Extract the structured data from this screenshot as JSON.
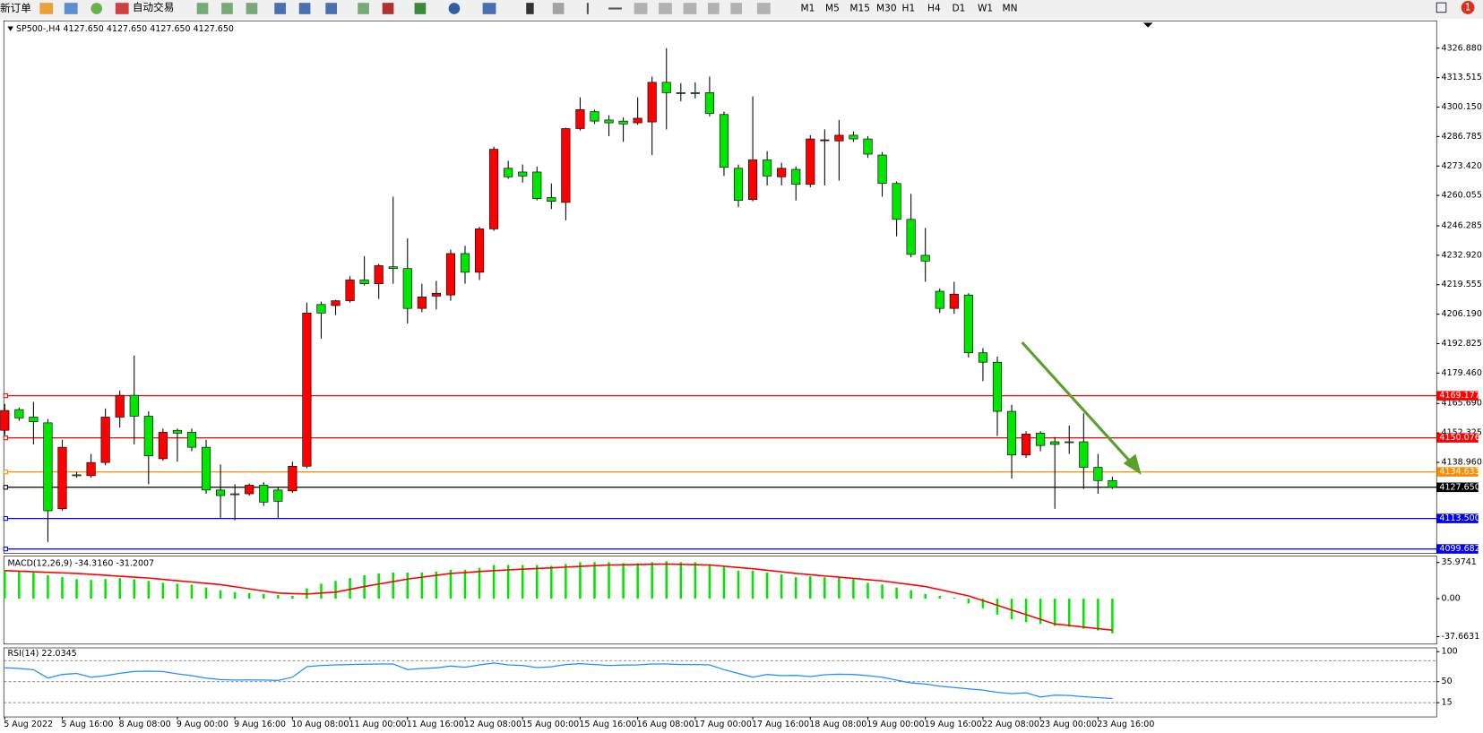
{
  "toolbar": {
    "buttons": [
      "新订单",
      "自动交易"
    ],
    "timeframes": [
      "M1",
      "M5",
      "M15",
      "M30",
      "H1",
      "H4",
      "D1",
      "W1",
      "MN"
    ],
    "badge": "1"
  },
  "chart_data": [
    {
      "type": "candlestick",
      "title": "SP500-,H4  4127.650 4127.650 4127.650 4127.650",
      "categories": [
        "5 Aug 2022",
        null,
        null,
        null,
        "5 Aug 16:00",
        null,
        null,
        null,
        "8 Aug 08:00",
        null,
        null,
        null,
        "9 Aug 00:00",
        null,
        null,
        null,
        "9 Aug 16:00",
        null,
        null,
        null,
        "10 Aug 08:00",
        null,
        null,
        null,
        "11 Aug 00:00",
        null,
        null,
        null,
        "11 Aug 16:00",
        null,
        null,
        null,
        "12 Aug 08:00",
        null,
        null,
        null,
        "15 Aug 00:00",
        null,
        null,
        null,
        "15 Aug 16:00",
        null,
        null,
        null,
        "16 Aug 08:00",
        null,
        null,
        null,
        "17 Aug 00:00",
        null,
        null,
        null,
        "17 Aug 16:00",
        null,
        null,
        null,
        "18 Aug 08:00",
        null,
        null,
        null,
        "19 Aug 00:00",
        null,
        null,
        null,
        "19 Aug 16:00",
        null,
        null,
        null,
        "22 Aug 08:00",
        null,
        null,
        null,
        "23 Aug 00:00",
        null,
        null,
        null,
        "23 Aug 16:00",
        null
      ],
      "open": [
        4153.5,
        4162.9,
        4159.5,
        4156.9,
        4117.9,
        4133.3,
        4132.9,
        4138.9,
        4159.5,
        4169.4,
        4159.9,
        4140.6,
        4153.5,
        4152.6,
        4145.8,
        4126.4,
        4124.7,
        4124.7,
        4128.6,
        4126.4,
        4126.0,
        4137.2,
        4210.6,
        4210.1,
        4212.3,
        4221.7,
        4220.0,
        4227.7,
        4226.9,
        4208.8,
        4214.4,
        4214.9,
        4233.7,
        4225.2,
        4244.9,
        4272.4,
        4270.7,
        4270.7,
        4259.1,
        4256.9,
        4290.4,
        4298.1,
        4294.3,
        4293.8,
        4293.0,
        4293.4,
        4311.4,
        4306.7,
        4306.7,
        4306.7,
        4296.8,
        4272.4,
        4258.2,
        4276.2,
        4268.5,
        4271.9,
        4265.1,
        4285.2,
        4284.8,
        4287.4,
        4285.7,
        4278.4,
        4265.5,
        4249.2,
        4232.9,
        4216.6,
        4208.8,
        4214.9,
        4188.7,
        4184.4,
        4162.1,
        4142.3,
        4152.2,
        4148.3,
        4148.3,
        4148.3,
        4136.7,
        4130.7
      ],
      "high": [
        4165.5,
        4163.8,
        4166.4,
        4158.6,
        4149.2,
        4134.6,
        4142.8,
        4163.4,
        4171.5,
        4187.4,
        4162.1,
        4154.3,
        4154.3,
        4154.3,
        4149.2,
        4138.0,
        4129.0,
        4129.4,
        4129.9,
        4127.7,
        4139.3,
        4211.4,
        4211.9,
        4212.7,
        4223.4,
        4232.5,
        4229.0,
        4259.5,
        4240.6,
        4220.0,
        4221.3,
        4235.5,
        4237.2,
        4245.8,
        4282.2,
        4275.8,
        4274.1,
        4273.2,
        4265.5,
        4290.8,
        4304.6,
        4299.0,
        4296.4,
        4295.5,
        4304.6,
        4314.0,
        4326.9,
        4311.0,
        4311.4,
        4314.0,
        4298.1,
        4274.1,
        4305.0,
        4280.1,
        4274.9,
        4273.2,
        4287.4,
        4290.0,
        4294.3,
        4289.1,
        4287.0,
        4279.7,
        4266.4,
        4260.8,
        4245.3,
        4217.9,
        4220.9,
        4215.7,
        4190.8,
        4187.0,
        4165.1,
        4153.1,
        4153.1,
        4150.5,
        4155.6,
        4161.2,
        4142.8,
        4132.4
      ],
      "low": [
        4151.3,
        4157.8,
        4147.1,
        4102.8,
        4117.0,
        4132.0,
        4132.0,
        4137.6,
        4154.8,
        4147.1,
        4129.0,
        4139.7,
        4139.3,
        4144.0,
        4124.7,
        4113.6,
        4112.7,
        4123.9,
        4119.2,
        4113.6,
        4125.2,
        4136.3,
        4195.1,
        4205.8,
        4211.4,
        4219.2,
        4213.1,
        4220.0,
        4202.0,
        4207.1,
        4208.4,
        4212.3,
        4220.0,
        4221.7,
        4244.0,
        4267.6,
        4265.9,
        4257.8,
        4253.9,
        4248.8,
        4289.5,
        4292.5,
        4287.0,
        4284.4,
        4292.1,
        4278.4,
        4290.0,
        4302.8,
        4304.1,
        4296.0,
        4268.9,
        4254.8,
        4257.4,
        4264.6,
        4264.6,
        4257.8,
        4263.8,
        4264.6,
        4266.8,
        4284.4,
        4277.1,
        4259.5,
        4241.5,
        4232.0,
        4220.9,
        4206.7,
        4206.3,
        4186.5,
        4175.8,
        4150.9,
        4131.6,
        4141.0,
        4144.0,
        4117.9,
        4142.8,
        4126.9,
        4124.7,
        4126.9
      ],
      "close": [
        4162.5,
        4159.1,
        4157.4,
        4117.0,
        4145.8,
        4132.9,
        4138.9,
        4159.5,
        4169.4,
        4159.9,
        4141.9,
        4152.6,
        4152.2,
        4145.8,
        4126.4,
        4123.9,
        4124.3,
        4128.6,
        4120.9,
        4121.3,
        4137.2,
        4206.7,
        4206.7,
        4212.3,
        4221.7,
        4220.0,
        4228.2,
        4226.9,
        4208.8,
        4214.0,
        4215.7,
        4233.7,
        4225.2,
        4244.9,
        4281.0,
        4268.5,
        4268.9,
        4258.6,
        4257.4,
        4290.4,
        4299.0,
        4293.8,
        4293.0,
        4292.5,
        4295.1,
        4311.4,
        4306.7,
        4306.5,
        4306.6,
        4297.3,
        4272.8,
        4257.8,
        4276.2,
        4268.9,
        4272.4,
        4265.1,
        4285.7,
        4285.3,
        4287.4,
        4285.7,
        4278.8,
        4265.5,
        4249.2,
        4233.3,
        4230.3,
        4208.8,
        4215.3,
        4188.7,
        4184.4,
        4162.1,
        4142.3,
        4151.8,
        4146.6,
        4147.1,
        4147.9,
        4136.7,
        4130.7,
        4127.65
      ],
      "up_color": "#ff0000",
      "down_color": "#00e600",
      "ylim": [
        4097.7,
        4339.3
      ],
      "yticks": [
        {
          "value": 4326.88,
          "label": "4326.880"
        },
        4313.515,
        {
          "value": 4300.15,
          "label": "4300.150"
        },
        4286.785,
        {
          "value": 4273.42,
          "label": "4273.420"
        },
        {
          "value": 4260.055,
          "label": "4260.055"
        },
        {
          "value": 4246.285,
          "label": "4246.285"
        },
        {
          "value": 4232.92,
          "label": "4232.920"
        },
        4219.555,
        {
          "value": 4206.19,
          "label": "4206.190"
        },
        4192.825,
        {
          "value": 4179.46,
          "label": "4179.460"
        },
        {
          "value": 4165.69,
          "label": "4165.690"
        },
        4152.325,
        {
          "value": 4138.96,
          "label": "4138.960"
        }
      ],
      "levels": [
        {
          "value": 4169.177,
          "color": "#ff0000"
        },
        {
          "value": 4150.076,
          "color": "#ff0000"
        },
        {
          "value": 4134.633,
          "color": "#ff8c00"
        },
        {
          "value": 4127.65,
          "label": "4127.650",
          "color": "#000000"
        },
        {
          "value": 4113.5,
          "label": "4113.500",
          "color": "#0000ff"
        },
        {
          "value": 4099.682,
          "color": "#0000ff"
        }
      ]
    },
    {
      "type": "macd",
      "title": "MACD(12,26,9) -34.3160 -31.2007",
      "histogram": [
        27.9,
        27.9,
        26.0,
        23.3,
        21.4,
        19.5,
        18.6,
        19.5,
        20.5,
        19.5,
        17.7,
        15.8,
        14.9,
        14.0,
        11.2,
        8.4,
        6.5,
        5.6,
        4.7,
        3.7,
        2.8,
        10.2,
        14.9,
        17.7,
        20.5,
        23.3,
        25.1,
        26.0,
        26.0,
        26.0,
        27.0,
        28.8,
        28.8,
        30.7,
        33.5,
        33.5,
        33.5,
        33.5,
        32.6,
        34.4,
        36.3,
        36.3,
        36.3,
        35.3,
        35.3,
        36.3,
        37.2,
        36.3,
        36.3,
        34.4,
        31.6,
        27.9,
        27.9,
        26.0,
        24.2,
        21.4,
        22.3,
        21.4,
        21.4,
        19.5,
        15.8,
        14.0,
        11.2,
        8.4,
        4.7,
        2.8,
        0.9,
        -4.7,
        -9.3,
        -15.8,
        -20.5,
        -23.3,
        -25.1,
        -27.0,
        -27.9,
        -29.8,
        -31.6,
        -34.316
      ],
      "signal": [
        27.9,
        27.3,
        26.8,
        26.2,
        25.7,
        25.1,
        24.2,
        23.3,
        22.3,
        21.4,
        20.5,
        19.2,
        17.9,
        16.6,
        15.3,
        14.0,
        11.9,
        9.8,
        7.7,
        5.6,
        5.1,
        4.7,
        5.6,
        6.5,
        9.3,
        12.1,
        14.6,
        17.0,
        19.5,
        21.4,
        23.2,
        25.1,
        26.0,
        27.0,
        27.9,
        28.6,
        29.3,
        30.0,
        30.7,
        31.4,
        32.1,
        32.8,
        33.5,
        33.7,
        33.9,
        34.2,
        34.4,
        34.1,
        33.8,
        33.5,
        32.3,
        31.0,
        29.8,
        28.2,
        26.7,
        25.1,
        23.9,
        22.6,
        21.4,
        20.2,
        18.9,
        17.7,
        15.8,
        14.0,
        12.1,
        9.0,
        5.9,
        2.8,
        -1.9,
        -6.5,
        -11.2,
        -15.8,
        -20.5,
        -25.1,
        -26.6,
        -28.2,
        -29.7,
        -31.2007
      ],
      "histogram_color": "#00e600",
      "signal_color": "#ff0000",
      "ylim": [
        -45.1,
        42.3
      ],
      "yticks": [
        35.9741,
        {
          "value": 0,
          "label": "0.00"
        },
        -37.6631
      ]
    },
    {
      "type": "line",
      "title": "RSI(14) 22.0345",
      "values": [
        73.2,
        72.0,
        70.0,
        56.0,
        62.0,
        63.8,
        57.5,
        60.0,
        64.0,
        66.9,
        67.5,
        66.9,
        63.0,
        60.0,
        55.9,
        53.5,
        52.8,
        53.0,
        52.8,
        52.0,
        57.5,
        75.0,
        77.0,
        78.0,
        78.5,
        79.0,
        79.5,
        79.5,
        70.1,
        72.0,
        73.0,
        76.0,
        74.0,
        78.0,
        81.1,
        78.0,
        77.0,
        73.5,
        74.8,
        78.5,
        80.0,
        78.5,
        77.0,
        77.5,
        78.0,
        79.5,
        79.5,
        78.5,
        78.5,
        78.0,
        70.0,
        63.8,
        57.5,
        62.0,
        60.0,
        60.5,
        58.5,
        61.5,
        62.5,
        62.0,
        60.0,
        57.5,
        52.5,
        48.0,
        46.0,
        42.5,
        40.2,
        38.0,
        36.0,
        32.3,
        30.0,
        31.5,
        24.4,
        27.6,
        27.0,
        25.0,
        23.5,
        22.0345
      ],
      "color": "#1e90ff",
      "ylim": [
        -8.7,
        106.3
      ],
      "yticks": [
        100,
        50,
        15
      ],
      "levels": [
        85,
        50,
        15
      ]
    }
  ]
}
